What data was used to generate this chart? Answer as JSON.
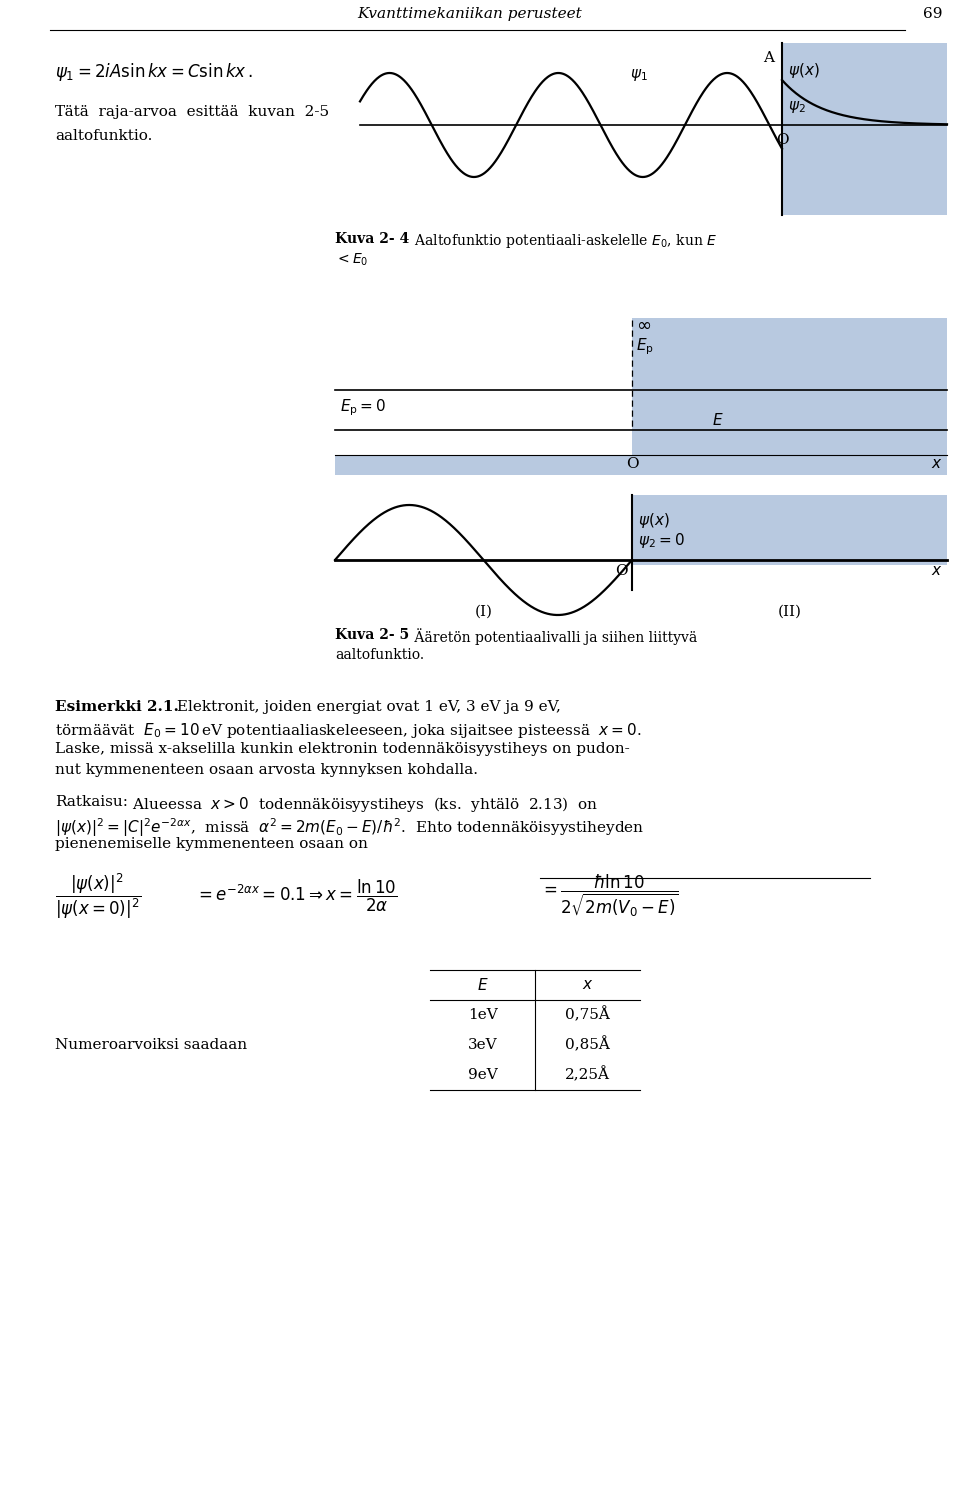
{
  "page_title": "Kvanttimekaniikan perusteet",
  "page_number": "69",
  "background_color": "#ffffff",
  "blue_color": "#b8c9e0",
  "figsize": [
    9.6,
    15.07
  ],
  "dpi": 100,
  "table_rows": [
    [
      "1eV",
      "0,75Å"
    ],
    [
      "3eV",
      "0,85Å"
    ],
    [
      "9eV",
      "2,25Å"
    ]
  ]
}
